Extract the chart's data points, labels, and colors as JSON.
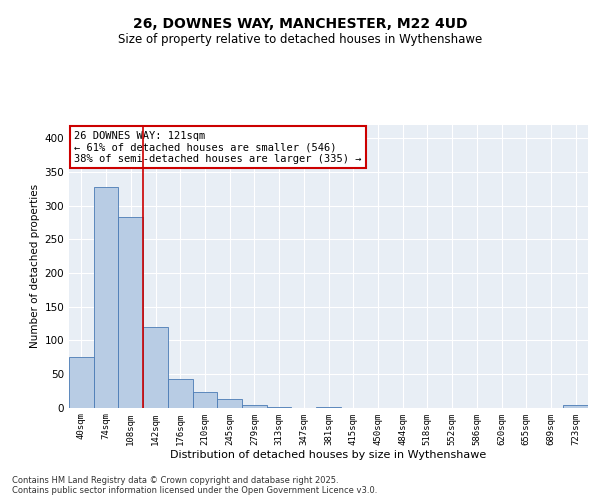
{
  "title": "26, DOWNES WAY, MANCHESTER, M22 4UD",
  "subtitle": "Size of property relative to detached houses in Wythenshawe",
  "xlabel": "Distribution of detached houses by size in Wythenshawe",
  "ylabel": "Number of detached properties",
  "categories": [
    "40sqm",
    "74sqm",
    "108sqm",
    "142sqm",
    "176sqm",
    "210sqm",
    "245sqm",
    "279sqm",
    "313sqm",
    "347sqm",
    "381sqm",
    "415sqm",
    "450sqm",
    "484sqm",
    "518sqm",
    "552sqm",
    "586sqm",
    "620sqm",
    "655sqm",
    "689sqm",
    "723sqm"
  ],
  "values": [
    75,
    328,
    283,
    120,
    43,
    23,
    12,
    3,
    1,
    0,
    1,
    0,
    0,
    0,
    0,
    0,
    0,
    0,
    0,
    0,
    4
  ],
  "bar_color": "#b8cce4",
  "bar_edge_color": "#4a7ab5",
  "vline_x": 2.5,
  "vline_color": "#cc0000",
  "annotation_text": "26 DOWNES WAY: 121sqm\n← 61% of detached houses are smaller (546)\n38% of semi-detached houses are larger (335) →",
  "annotation_box_color": "#cc0000",
  "ylim": [
    0,
    420
  ],
  "yticks": [
    0,
    50,
    100,
    150,
    200,
    250,
    300,
    350,
    400
  ],
  "background_color": "#e8eef5",
  "grid_color": "#ffffff",
  "footer_text": "Contains HM Land Registry data © Crown copyright and database right 2025.\nContains public sector information licensed under the Open Government Licence v3.0."
}
